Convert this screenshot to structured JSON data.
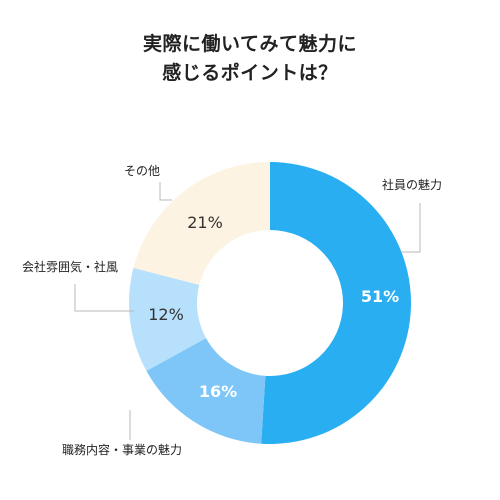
{
  "chart_data": {
    "type": "pie",
    "variant": "donut",
    "title_lines": [
      "実際に働いてみて魅力に",
      "感じるポイントは？"
    ],
    "slices": [
      {
        "label": "社員の魅力",
        "value": 51,
        "value_label": "51%",
        "color": "#29aef2",
        "value_label_color": "#ffffff"
      },
      {
        "label": "職務内容・事業の魅力",
        "value": 16,
        "value_label": "16%",
        "color": "#7ec6f7",
        "value_label_color": "#ffffff"
      },
      {
        "label": "会社雰囲気・社風",
        "value": 12,
        "value_label": "12%",
        "color": "#b6e0fb",
        "value_label_color": "#333333"
      },
      {
        "label": "その他",
        "value": 21,
        "value_label": "21%",
        "color": "#fdf3e2",
        "value_label_color": "#333333"
      }
    ],
    "start": "12 o'clock, clockwise",
    "legend": "none (callout labels)"
  },
  "colors": {
    "leader_line": "#b8b8b8",
    "background": "#ffffff"
  }
}
